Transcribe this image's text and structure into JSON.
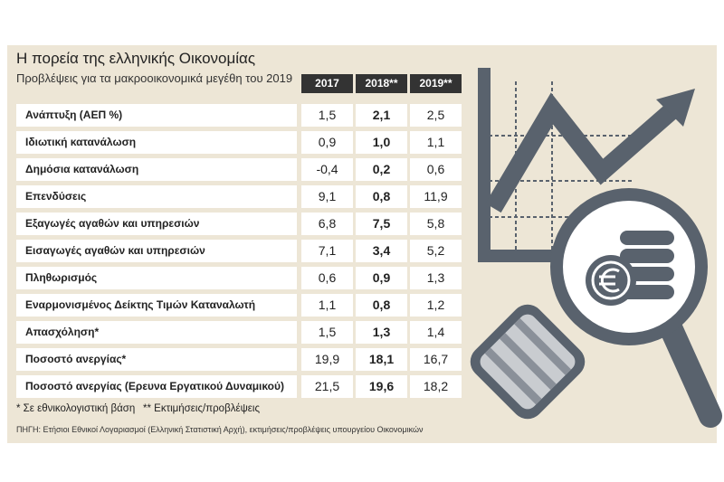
{
  "header": {
    "title": "Η πορεία της ελληνικής Οικονομίας",
    "subtitle": "Προβλέψεις για τα μακροοικονομικά μεγέθη του 2019"
  },
  "table": {
    "columns": [
      "2017",
      "2018**",
      "2019**"
    ],
    "rows": [
      [
        "Ανάπτυξη (ΑΕΠ %)",
        "1,5",
        "2,1",
        "2,5"
      ],
      [
        "Ιδιωτική κατανάλωση",
        "0,9",
        "1,0",
        "1,1"
      ],
      [
        "Δημόσια κατανάλωση",
        "-0,4",
        "0,2",
        "0,6"
      ],
      [
        "Επενδύσεις",
        "9,1",
        "0,8",
        "11,9"
      ],
      [
        "Εξαγωγές αγαθών και υπηρεσιών",
        "6,8",
        "7,5",
        "5,8"
      ],
      [
        "Εισαγωγές αγαθών και υπηρεσιών",
        "7,1",
        "3,4",
        "5,2"
      ],
      [
        "Πληθωρισμός",
        "0,6",
        "0,9",
        "1,3"
      ],
      [
        "Εναρμονισμένος Δείκτης Τιμών Καταναλωτή",
        "1,1",
        "0,8",
        "1,2"
      ],
      [
        "Απασχόληση*",
        "1,5",
        "1,3",
        "1,4"
      ],
      [
        "Ποσοστό ανεργίας*",
        "19,9",
        "18,1",
        "16,7"
      ],
      [
        "Ποσοστό ανεργίας (Ερευνα Εργατικού Δυναμικού)",
        "21,5",
        "19,6",
        "18,2"
      ]
    ]
  },
  "notes": [
    "* Σε εθνικολογιστική βάση",
    "** Εκτιμήσεις/προβλέψεις"
  ],
  "source": "ΠΗΓΗ: Ετήσιοι Εθνικοί Λογαριασμοί (Ελληνική Στατιστική Αρχή), εκτιμήσεις/προβλέψεις υπουργείου Οικονομικών"
}
